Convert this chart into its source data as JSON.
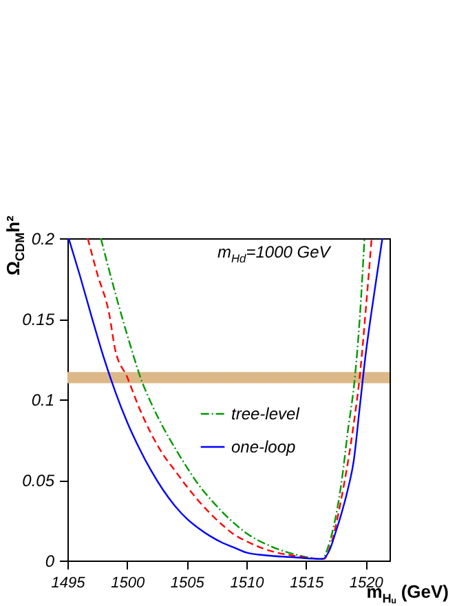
{
  "chart_data": {
    "type": "line",
    "xlabel": "m$_{Hᵤ}$ (GeV)",
    "ylabel": "Ω$_{CDM}$h²",
    "annotations": [
      "m$_{Hd}$=1000 GeV"
    ],
    "xlim": [
      1495,
      1522
    ],
    "xticks": [
      1495,
      1500,
      1505,
      1510,
      1515,
      1520
    ],
    "ylim": [
      0,
      0.2
    ],
    "yticks": [
      0,
      0.05,
      0.1,
      0.15,
      0.2
    ],
    "grid": false,
    "legend": "right",
    "marker": "none",
    "bands": [
      {
        "axis": "y",
        "from": 0.11,
        "to": 0.117,
        "color": "#dcb888"
      }
    ],
    "series": [
      {
        "name": "tree-level",
        "color": "#009900",
        "line_style": "dotted",
        "x": [
          1497.8,
          1498.5,
          1499.5,
          1500.5,
          1501.1,
          1502,
          1503,
          1504,
          1505,
          1506,
          1507,
          1508,
          1509,
          1510,
          1512,
          1514,
          1516.3,
          1517,
          1518,
          1518.5,
          1519.1,
          1519.5,
          1519.9
        ],
        "values": [
          0.2,
          0.18,
          0.153,
          0.128,
          0.114,
          0.098,
          0.083,
          0.07,
          0.058,
          0.047,
          0.038,
          0.03,
          0.023,
          0.017,
          0.009,
          0.004,
          0.001,
          0.012,
          0.05,
          0.08,
          0.114,
          0.15,
          0.2
        ]
      },
      {
        "color": "#ff0000",
        "line_style": "dashed",
        "x": [
          1496.7,
          1497.5,
          1498.5,
          1499,
          1500,
          1501,
          1502,
          1503,
          1504,
          1505,
          1506,
          1507,
          1508,
          1509,
          1510,
          1512,
          1514,
          1516.5,
          1517,
          1518,
          1519,
          1519.5,
          1520,
          1520.5
        ],
        "values": [
          0.2,
          0.178,
          0.153,
          0.131,
          0.114,
          0.095,
          0.079,
          0.066,
          0.056,
          0.046,
          0.037,
          0.029,
          0.022,
          0.016,
          0.012,
          0.006,
          0.003,
          0.001,
          0.008,
          0.04,
          0.085,
          0.114,
          0.155,
          0.2
        ]
      },
      {
        "name": "one-loop",
        "color": "#0000ff",
        "line_style": "solid",
        "x": [
          1495.1,
          1496,
          1497,
          1498,
          1499,
          1500,
          1501,
          1502,
          1503,
          1504,
          1505,
          1506,
          1507,
          1508,
          1509,
          1510,
          1512,
          1514,
          1516.4,
          1517,
          1517.5,
          1518,
          1518.5,
          1519,
          1519.5,
          1520,
          1520.5,
          1521,
          1521.4
        ],
        "values": [
          0.2,
          0.178,
          0.152,
          0.127,
          0.105,
          0.086,
          0.07,
          0.056,
          0.044,
          0.034,
          0.026,
          0.02,
          0.015,
          0.011,
          0.008,
          0.005,
          0.003,
          0.002,
          0.001,
          0.007,
          0.018,
          0.03,
          0.044,
          0.062,
          0.095,
          0.128,
          0.155,
          0.18,
          0.2
        ]
      }
    ]
  }
}
